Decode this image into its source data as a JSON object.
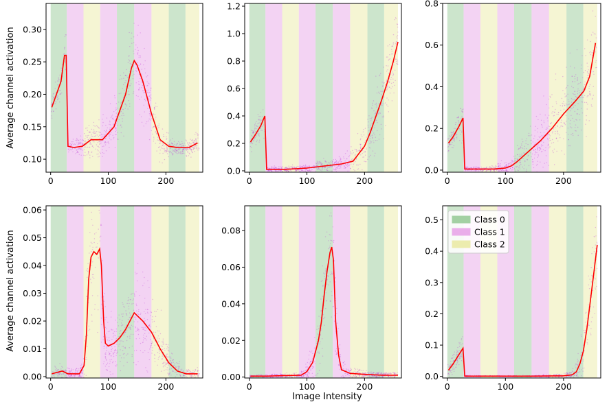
{
  "figure": {
    "xlabel": "Image Intensity",
    "ylabel": "Average channel activation"
  },
  "colors": {
    "band_class_0": "#a3d0a3",
    "band_class_1": "#eaaeea",
    "band_class_2": "#ececae",
    "scatter": "#c040d8",
    "line": "#ff0000"
  },
  "chart_data": [
    {
      "type": "line",
      "xlim": [
        -8,
        264
      ],
      "ylim": [
        0.08,
        0.34
      ],
      "xticks": [
        0,
        100,
        200
      ],
      "yticks": [
        0.1,
        0.15,
        0.2,
        0.25,
        0.3
      ],
      "ytick_labels": [
        "0.10",
        "0.15",
        "0.20",
        "0.25",
        "0.30"
      ],
      "mean_curve": {
        "x": [
          2,
          10,
          18,
          24,
          27,
          30,
          40,
          55,
          70,
          90,
          110,
          130,
          140,
          145,
          150,
          160,
          175,
          190,
          205,
          220,
          240,
          255
        ],
        "y": [
          0.18,
          0.2,
          0.22,
          0.26,
          0.26,
          0.12,
          0.118,
          0.12,
          0.13,
          0.13,
          0.15,
          0.2,
          0.24,
          0.252,
          0.245,
          0.22,
          0.17,
          0.13,
          0.12,
          0.118,
          0.118,
          0.125
        ]
      },
      "scatter_spread": [
        0.008,
        0.01,
        0.012,
        0.015,
        0.015,
        0.006,
        0.006,
        0.008,
        0.012,
        0.014,
        0.018,
        0.025,
        0.03,
        0.032,
        0.032,
        0.03,
        0.025,
        0.015,
        0.008,
        0.006,
        0.006,
        0.008
      ]
    },
    {
      "type": "line",
      "xlim": [
        -8,
        264
      ],
      "ylim": [
        -0.01,
        1.22
      ],
      "xticks": [
        0,
        100,
        200
      ],
      "yticks": [
        0.0,
        0.2,
        0.4,
        0.6,
        0.8,
        1.0,
        1.2
      ],
      "ytick_labels": [
        "0.0",
        "0.2",
        "0.4",
        "0.6",
        "0.8",
        "1.0",
        "1.2"
      ],
      "mean_curve": {
        "x": [
          2,
          10,
          20,
          27,
          30,
          40,
          60,
          80,
          100,
          120,
          140,
          160,
          180,
          200,
          210,
          220,
          230,
          240,
          250,
          258
        ],
        "y": [
          0.21,
          0.26,
          0.33,
          0.4,
          0.01,
          0.01,
          0.01,
          0.015,
          0.02,
          0.03,
          0.04,
          0.05,
          0.07,
          0.18,
          0.28,
          0.4,
          0.52,
          0.65,
          0.8,
          0.94
        ]
      },
      "scatter_spread": [
        0.03,
        0.05,
        0.07,
        0.08,
        0.01,
        0.01,
        0.01,
        0.01,
        0.015,
        0.02,
        0.02,
        0.03,
        0.04,
        0.08,
        0.1,
        0.12,
        0.13,
        0.14,
        0.15,
        0.15
      ]
    },
    {
      "type": "line",
      "xlim": [
        -8,
        264
      ],
      "ylim": [
        -0.01,
        0.8
      ],
      "xticks": [
        0,
        100,
        200
      ],
      "yticks": [
        0.0,
        0.2,
        0.4,
        0.6,
        0.8
      ],
      "ytick_labels": [
        "0.0",
        "0.2",
        "0.4",
        "0.6",
        "0.8"
      ],
      "mean_curve": {
        "x": [
          2,
          10,
          20,
          27,
          30,
          40,
          60,
          80,
          100,
          110,
          120,
          140,
          160,
          180,
          200,
          220,
          235,
          245,
          255
        ],
        "y": [
          0.13,
          0.16,
          0.21,
          0.25,
          0.005,
          0.005,
          0.005,
          0.005,
          0.01,
          0.02,
          0.04,
          0.09,
          0.14,
          0.2,
          0.27,
          0.33,
          0.38,
          0.45,
          0.61
        ]
      },
      "scatter_spread": [
        0.02,
        0.03,
        0.04,
        0.05,
        0.005,
        0.005,
        0.005,
        0.008,
        0.015,
        0.02,
        0.03,
        0.05,
        0.07,
        0.08,
        0.09,
        0.1,
        0.11,
        0.12,
        0.12
      ]
    },
    {
      "type": "line",
      "xlim": [
        -8,
        264
      ],
      "ylim": [
        -0.0005,
        0.0615
      ],
      "xticks": [
        0,
        100,
        200
      ],
      "yticks": [
        0.0,
        0.01,
        0.02,
        0.03,
        0.04,
        0.05,
        0.06
      ],
      "ytick_labels": [
        "0.00",
        "0.01",
        "0.02",
        "0.03",
        "0.04",
        "0.05",
        "0.06"
      ],
      "mean_curve": {
        "x": [
          2,
          20,
          30,
          50,
          58,
          62,
          66,
          70,
          75,
          80,
          85,
          88,
          92,
          95,
          100,
          110,
          120,
          130,
          140,
          145,
          150,
          160,
          175,
          190,
          205,
          220,
          235,
          255
        ],
        "y": [
          0.001,
          0.002,
          0.001,
          0.001,
          0.004,
          0.015,
          0.035,
          0.043,
          0.045,
          0.044,
          0.046,
          0.04,
          0.02,
          0.012,
          0.011,
          0.012,
          0.014,
          0.017,
          0.021,
          0.023,
          0.022,
          0.02,
          0.016,
          0.01,
          0.005,
          0.002,
          0.001,
          0.001
        ]
      },
      "scatter_spread": [
        0.001,
        0.001,
        0.001,
        0.001,
        0.003,
        0.008,
        0.01,
        0.012,
        0.013,
        0.013,
        0.013,
        0.012,
        0.008,
        0.006,
        0.005,
        0.005,
        0.006,
        0.007,
        0.008,
        0.009,
        0.009,
        0.008,
        0.007,
        0.005,
        0.003,
        0.002,
        0.001,
        0.001
      ]
    },
    {
      "type": "line",
      "xlim": [
        -8,
        264
      ],
      "ylim": [
        -0.0005,
        0.0935
      ],
      "xticks": [
        0,
        100,
        200
      ],
      "yticks": [
        0.0,
        0.02,
        0.04,
        0.06,
        0.08
      ],
      "ytick_labels": [
        "0.00",
        "0.02",
        "0.04",
        "0.06",
        "0.08"
      ],
      "mean_curve": {
        "x": [
          2,
          30,
          60,
          90,
          100,
          110,
          120,
          125,
          130,
          135,
          140,
          143,
          146,
          150,
          155,
          160,
          175,
          200,
          230,
          258
        ],
        "y": [
          0.0005,
          0.0005,
          0.0008,
          0.001,
          0.003,
          0.008,
          0.02,
          0.03,
          0.045,
          0.058,
          0.068,
          0.071,
          0.064,
          0.03,
          0.012,
          0.004,
          0.002,
          0.0015,
          0.001,
          0.001
        ]
      },
      "scatter_spread": [
        0.0003,
        0.0004,
        0.0005,
        0.001,
        0.002,
        0.004,
        0.008,
        0.01,
        0.012,
        0.014,
        0.015,
        0.015,
        0.014,
        0.012,
        0.008,
        0.004,
        0.002,
        0.001,
        0.001,
        0.001
      ]
    },
    {
      "type": "line",
      "xlim": [
        -8,
        264
      ],
      "ylim": [
        -0.005,
        0.545
      ],
      "xticks": [
        0,
        100,
        200
      ],
      "yticks": [
        0.0,
        0.1,
        0.2,
        0.3,
        0.4,
        0.5
      ],
      "ytick_labels": [
        "0.0",
        "0.1",
        "0.2",
        "0.3",
        "0.4",
        "0.5"
      ],
      "mean_curve": {
        "x": [
          2,
          10,
          20,
          27,
          30,
          50,
          100,
          150,
          200,
          215,
          222,
          228,
          234,
          240,
          246,
          252,
          258
        ],
        "y": [
          0.02,
          0.04,
          0.07,
          0.09,
          0.001,
          0.001,
          0.001,
          0.001,
          0.002,
          0.005,
          0.015,
          0.04,
          0.08,
          0.15,
          0.24,
          0.33,
          0.42
        ]
      },
      "scatter_spread": [
        0.01,
        0.015,
        0.02,
        0.025,
        0.001,
        0.001,
        0.001,
        0.001,
        0.003,
        0.008,
        0.02,
        0.03,
        0.05,
        0.06,
        0.07,
        0.08,
        0.08
      ]
    }
  ],
  "class_bands": {
    "edges": [
      0,
      28,
      57,
      86,
      115,
      145,
      175,
      205,
      234,
      258
    ],
    "classes": [
      0,
      1,
      2,
      1,
      0,
      1,
      2,
      0,
      2
    ]
  },
  "legend": {
    "entries": [
      {
        "label": "Class 0",
        "color": "#a3d0a3"
      },
      {
        "label": "Class 1",
        "color": "#eaaeea"
      },
      {
        "label": "Class 2",
        "color": "#ececae"
      }
    ]
  }
}
